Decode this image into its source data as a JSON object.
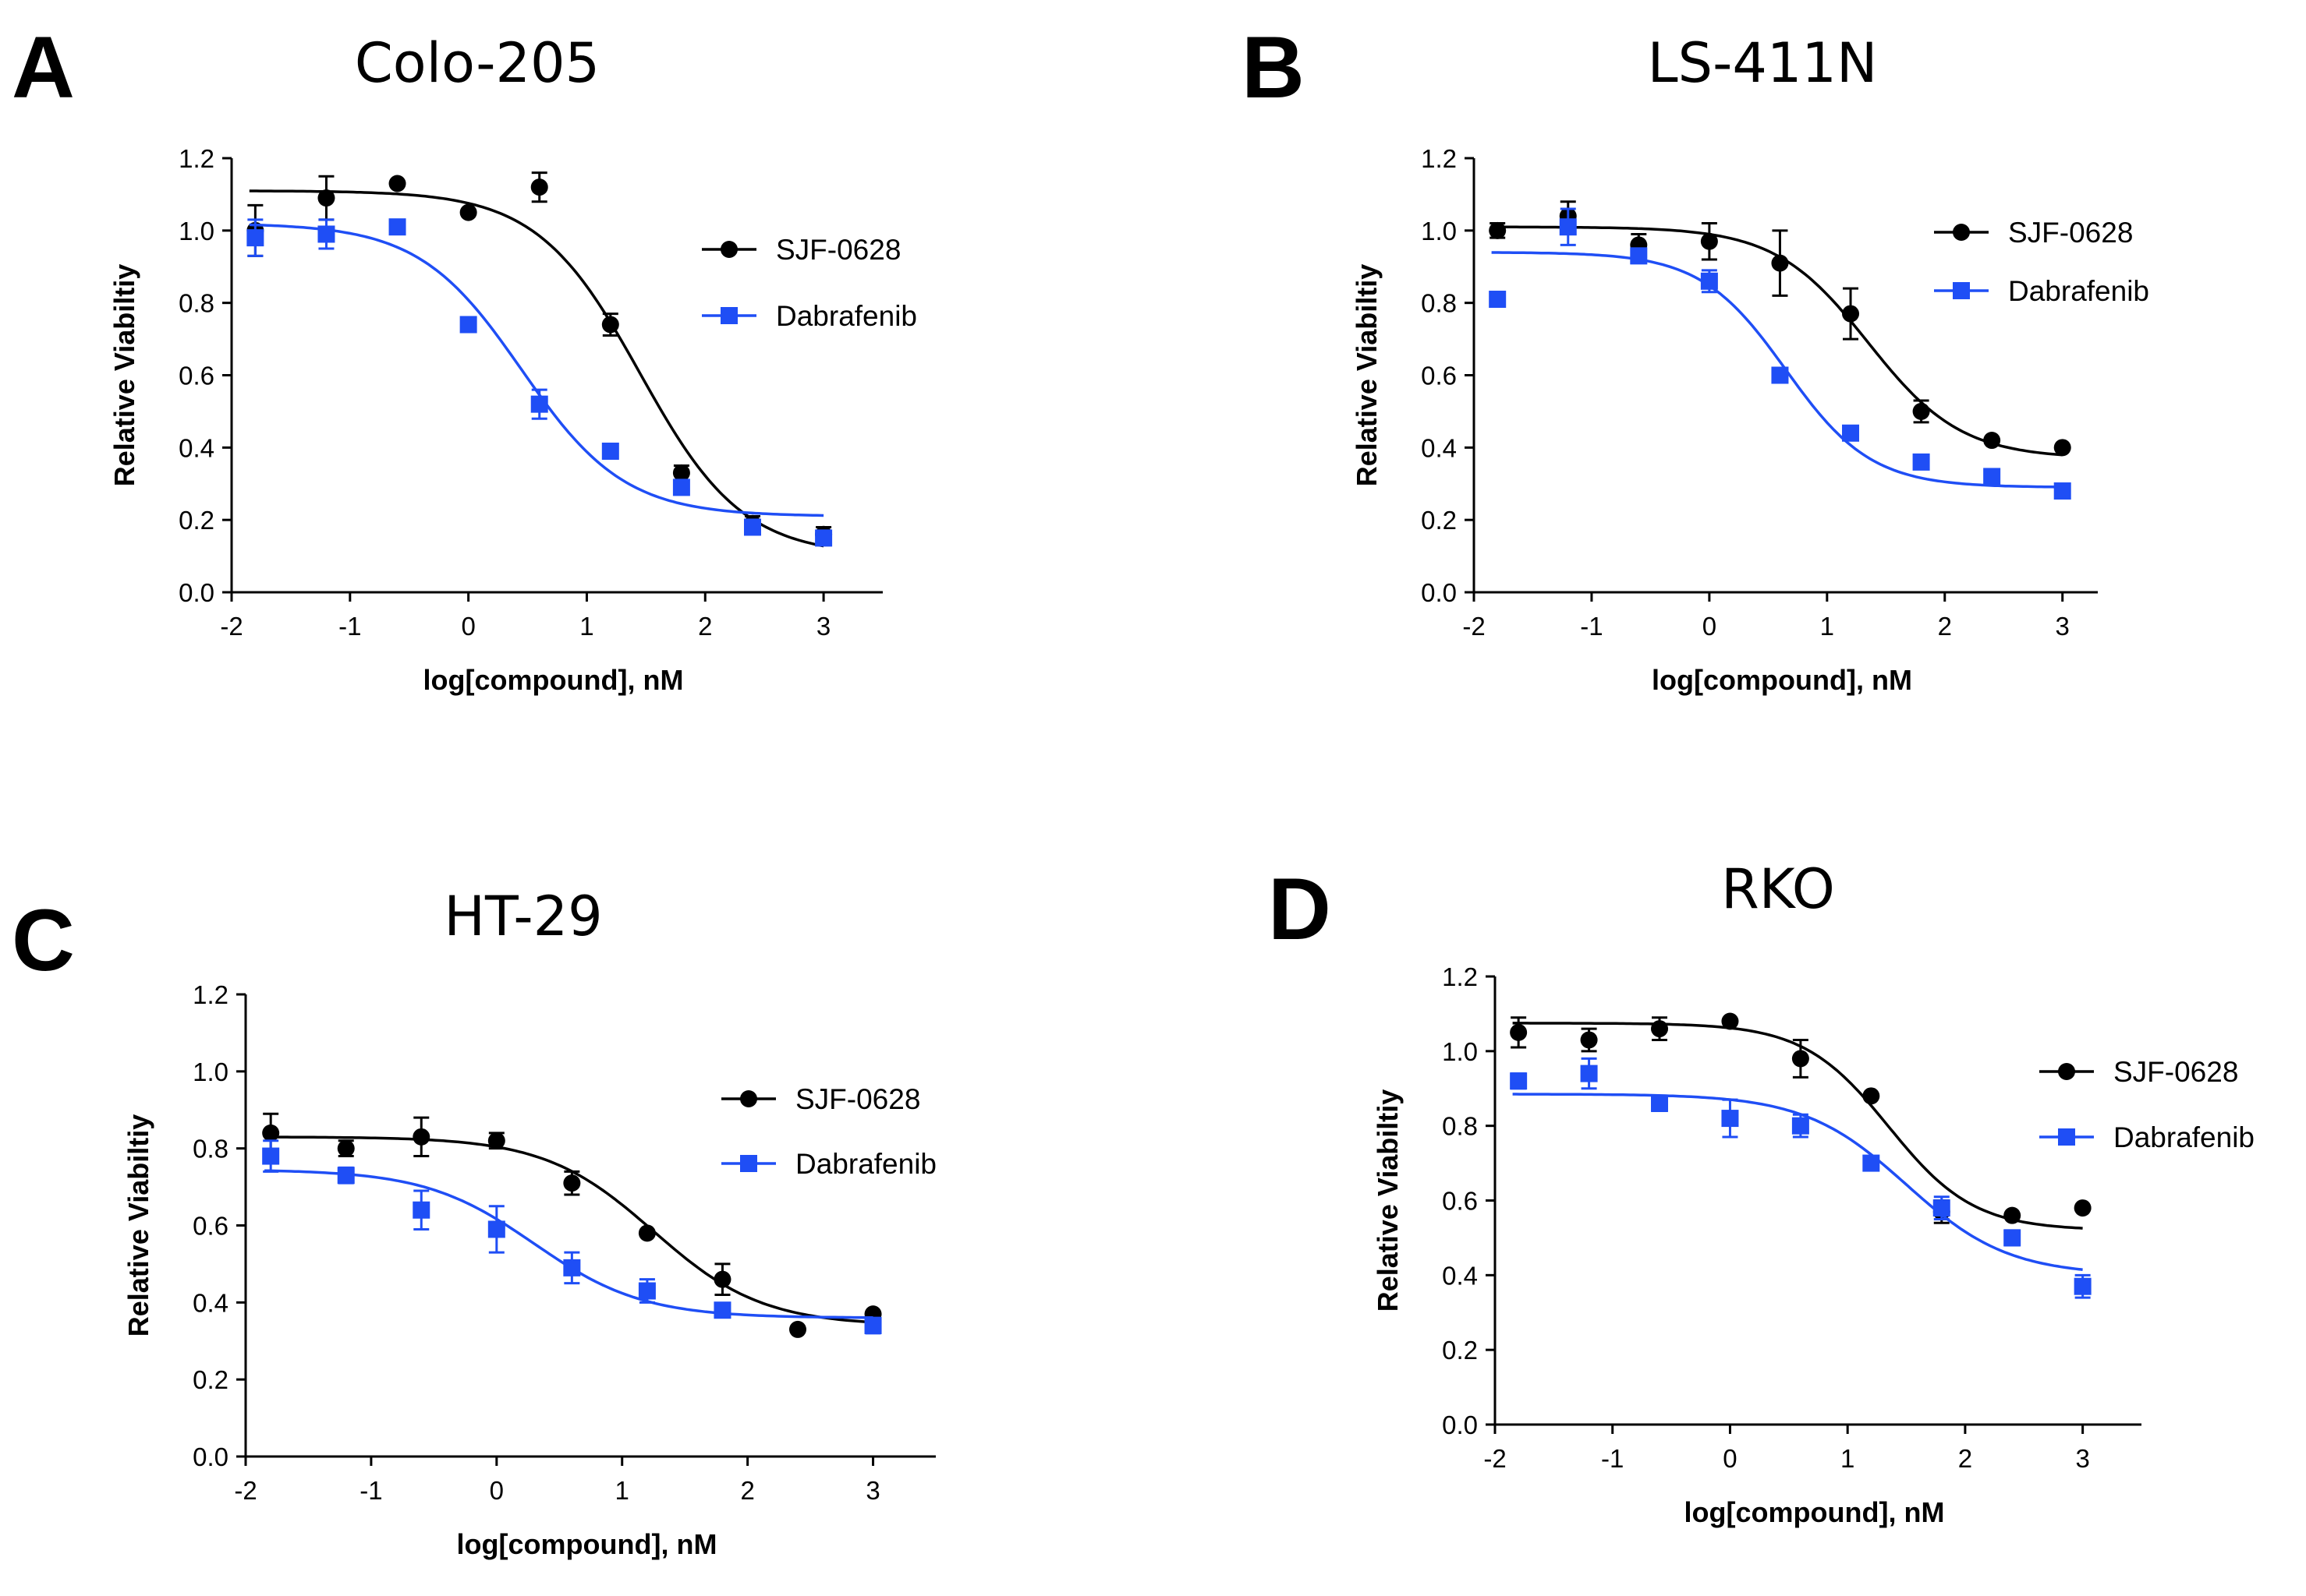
{
  "chart_data": [
    {
      "type": "scatter",
      "panel": "A",
      "title": "Colo-205",
      "xlabel": "log[compound], nM",
      "ylabel": "Relative Viabiltiy",
      "xlim": [
        -2,
        3.5
      ],
      "ylim": [
        0,
        1.2
      ],
      "xticks": [
        -2,
        -1,
        0,
        1,
        2,
        3
      ],
      "yticks": [
        0.0,
        0.2,
        0.4,
        0.6,
        0.8,
        1.0,
        1.2
      ],
      "legend_position": "top-right",
      "series": [
        {
          "name": "SJF-0628",
          "color": "#000000",
          "marker": "circle",
          "x": [
            -1.8,
            -1.2,
            -0.6,
            0,
            0.6,
            1.2,
            1.8,
            2.4,
            3
          ],
          "y": [
            1.0,
            1.09,
            1.13,
            1.05,
            1.12,
            0.74,
            0.33,
            0.19,
            0.16
          ],
          "err": [
            0.07,
            0.06,
            0.01,
            0.01,
            0.04,
            0.03,
            0.02,
            0.02,
            0.02
          ],
          "fit": {
            "top": 1.11,
            "bottom": 0.1,
            "logEC50": 1.45,
            "hill": 1.0
          }
        },
        {
          "name": "Dabrafenib",
          "color": "#1f4ef5",
          "marker": "square",
          "x": [
            -1.8,
            -1.2,
            -0.6,
            0,
            0.6,
            1.2,
            1.8,
            2.4,
            3
          ],
          "y": [
            0.98,
            0.99,
            1.01,
            0.74,
            0.52,
            0.39,
            0.29,
            0.18,
            0.15
          ],
          "err": [
            0.05,
            0.04,
            0.01,
            0.02,
            0.04,
            0.02,
            0.02,
            0.02,
            0.02
          ],
          "fit": {
            "top": 1.02,
            "bottom": 0.21,
            "logEC50": 0.45,
            "hill": 1.0
          }
        }
      ]
    },
    {
      "type": "scatter",
      "panel": "B",
      "title": "LS-411N",
      "xlabel": "log[compound], nM",
      "ylabel": "Relative Viabiltiy",
      "xlim": [
        -2,
        3.3
      ],
      "ylim": [
        0,
        1.2
      ],
      "xticks": [
        -2,
        -1,
        0,
        1,
        2,
        3
      ],
      "yticks": [
        0.0,
        0.2,
        0.4,
        0.6,
        0.8,
        1.0,
        1.2
      ],
      "legend_position": "top-right",
      "series": [
        {
          "name": "SJF-0628",
          "color": "#000000",
          "marker": "circle",
          "x": [
            -1.8,
            -1.2,
            -0.6,
            0,
            0.6,
            1.2,
            1.8,
            2.4,
            3
          ],
          "y": [
            1.0,
            1.04,
            0.96,
            0.97,
            0.91,
            0.77,
            0.5,
            0.42,
            0.4
          ],
          "err": [
            0.02,
            0.04,
            0.03,
            0.05,
            0.09,
            0.07,
            0.03,
            0.01,
            0.01
          ],
          "fit": {
            "top": 1.01,
            "bottom": 0.37,
            "logEC50": 1.35,
            "hill": 1.1
          }
        },
        {
          "name": "Dabrafenib",
          "color": "#1f4ef5",
          "marker": "square",
          "x": [
            -1.8,
            -1.2,
            -0.6,
            0,
            0.6,
            1.2,
            1.8,
            2.4,
            3
          ],
          "y": [
            0.81,
            1.01,
            0.93,
            0.86,
            0.6,
            0.44,
            0.36,
            0.32,
            0.28
          ],
          "err": [
            0.02,
            0.05,
            0.02,
            0.03,
            0.02,
            0.01,
            0.01,
            0.01,
            0.01
          ],
          "fit": {
            "top": 0.94,
            "bottom": 0.29,
            "logEC50": 0.65,
            "hill": 1.2
          }
        }
      ]
    },
    {
      "type": "scatter",
      "panel": "C",
      "title": "HT-29",
      "xlabel": "log[compound], nM",
      "ylabel": "Relative Viabiltiy",
      "xlim": [
        -2,
        3.5
      ],
      "ylim": [
        0,
        1.2
      ],
      "xticks": [
        -2,
        -1,
        0,
        1,
        2,
        3
      ],
      "yticks": [
        0.0,
        0.2,
        0.4,
        0.6,
        0.8,
        1.0,
        1.2
      ],
      "legend_position": "top-right",
      "series": [
        {
          "name": "SJF-0628",
          "color": "#000000",
          "marker": "circle",
          "x": [
            -1.8,
            -1.2,
            -0.6,
            0,
            0.6,
            1.2,
            1.8,
            2.4,
            3
          ],
          "y": [
            0.84,
            0.8,
            0.83,
            0.82,
            0.71,
            0.58,
            0.46,
            0.33,
            0.37
          ],
          "err": [
            0.05,
            0.02,
            0.05,
            0.02,
            0.03,
            0.01,
            0.04,
            0.01,
            0.01
          ],
          "fit": {
            "top": 0.83,
            "bottom": 0.34,
            "logEC50": 1.25,
            "hill": 1.0
          }
        },
        {
          "name": "Dabrafenib",
          "color": "#1f4ef5",
          "marker": "square",
          "x": [
            -1.8,
            -1.2,
            -0.6,
            0,
            0.6,
            1.2,
            1.8,
            3
          ],
          "y": [
            0.78,
            0.73,
            0.64,
            0.59,
            0.49,
            0.43,
            0.38,
            0.34
          ],
          "err": [
            0.04,
            0.02,
            0.05,
            0.06,
            0.04,
            0.03,
            0.01,
            0.02
          ],
          "fit": {
            "top": 0.745,
            "bottom": 0.36,
            "logEC50": 0.3,
            "hill": 1.0
          }
        }
      ]
    },
    {
      "type": "scatter",
      "panel": "D",
      "title": "RKO",
      "xlabel": "log[compound], nM",
      "ylabel": "Relative Viabiltiy",
      "xlim": [
        -2,
        3.5
      ],
      "ylim": [
        0,
        1.2
      ],
      "xticks": [
        -2,
        -1,
        0,
        1,
        2,
        3
      ],
      "yticks": [
        0.0,
        0.2,
        0.4,
        0.6,
        0.8,
        1.0,
        1.2
      ],
      "legend_position": "top-right",
      "series": [
        {
          "name": "SJF-0628",
          "color": "#000000",
          "marker": "circle",
          "x": [
            -1.8,
            -1.2,
            -0.6,
            0,
            0.6,
            1.2,
            1.8,
            2.4,
            3
          ],
          "y": [
            1.05,
            1.03,
            1.06,
            1.08,
            0.98,
            0.88,
            0.57,
            0.56,
            0.58
          ],
          "err": [
            0.04,
            0.03,
            0.03,
            0.01,
            0.05,
            0.01,
            0.03,
            0.01,
            0.01
          ],
          "fit": {
            "top": 1.075,
            "bottom": 0.52,
            "logEC50": 1.35,
            "hill": 1.2
          }
        },
        {
          "name": "Dabrafenib",
          "color": "#1f4ef5",
          "marker": "square",
          "x": [
            -1.8,
            -1.2,
            -0.6,
            0,
            0.6,
            1.2,
            1.8,
            2.4,
            3
          ],
          "y": [
            0.92,
            0.94,
            0.86,
            0.82,
            0.8,
            0.7,
            0.58,
            0.5,
            0.37
          ],
          "err": [
            0.02,
            0.04,
            0.02,
            0.05,
            0.03,
            0.01,
            0.03,
            0.02,
            0.03
          ],
          "fit": {
            "top": 0.885,
            "bottom": 0.4,
            "logEC50": 1.5,
            "hill": 1.0
          }
        }
      ]
    }
  ]
}
